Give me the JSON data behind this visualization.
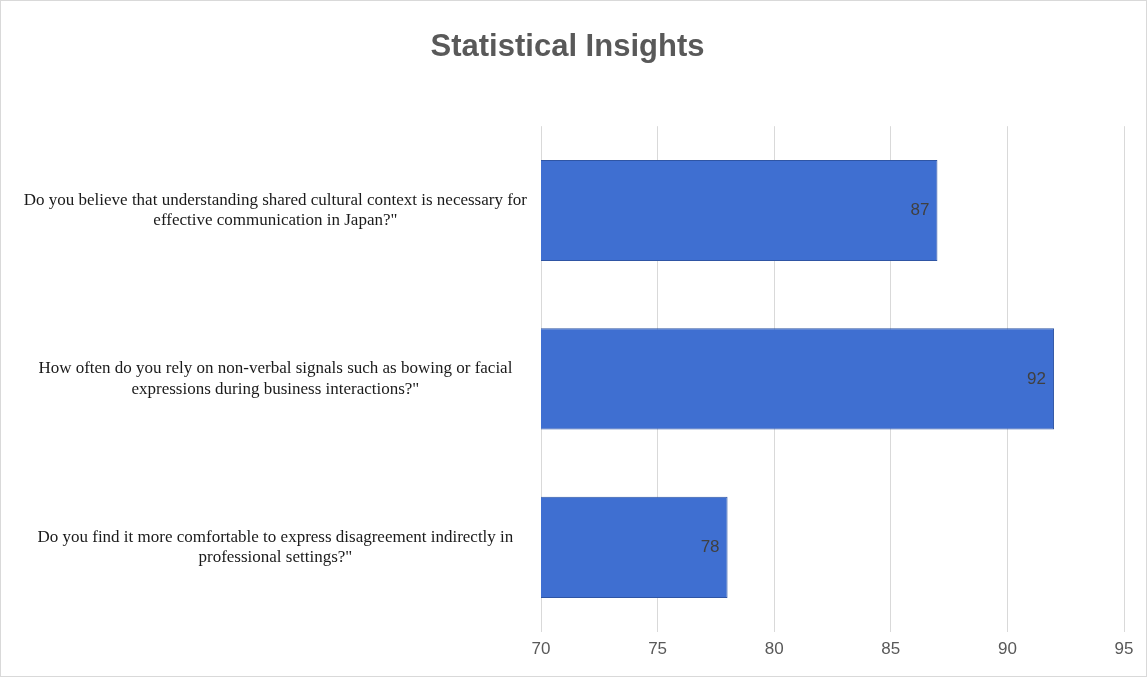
{
  "chart_data": {
    "type": "bar",
    "orientation": "horizontal",
    "title": "Statistical Insights",
    "categories": [
      "Do you believe that understanding shared cultural context is necessary for effective communication in Japan?\"",
      "How often do you rely on non-verbal signals such as bowing or facial expressions during business interactions?\"",
      "Do you find it more comfortable to express disagreement indirectly in professional settings?\""
    ],
    "values": [
      87,
      92,
      78
    ],
    "color": "#3f6fd1",
    "xlim": [
      70,
      95
    ],
    "xticks": [
      70,
      75,
      80,
      85,
      90,
      95
    ],
    "grid": "x",
    "data_labels": true
  }
}
